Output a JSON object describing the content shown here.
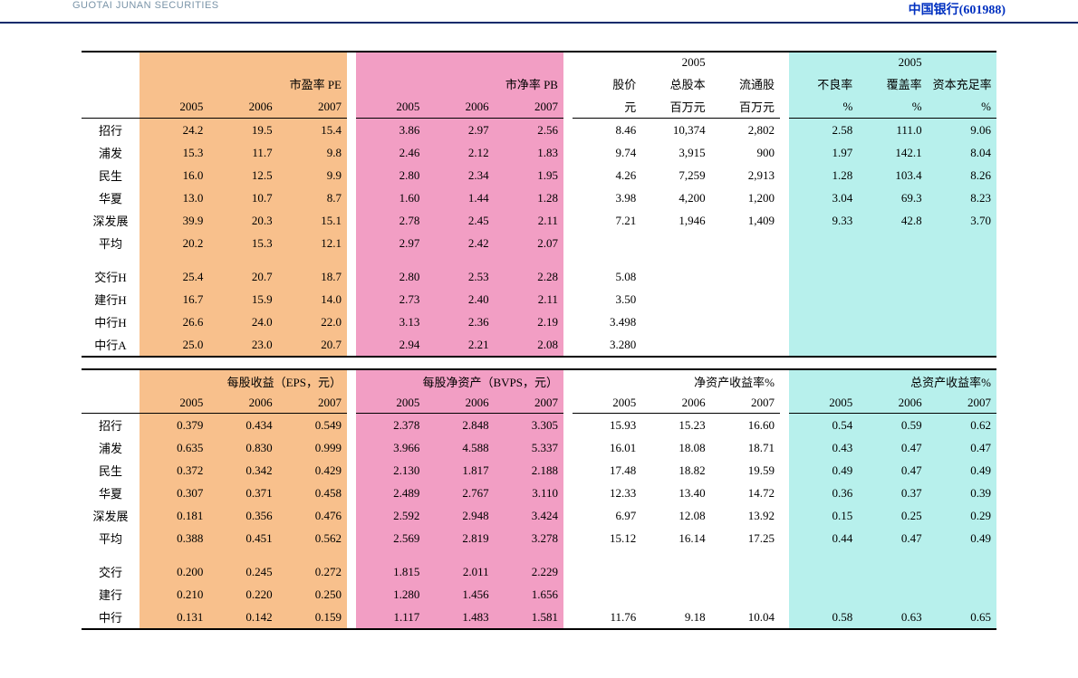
{
  "header": {
    "brand": "GUOTAI JUNAN SECURITIES",
    "ticker": "中国银行(601988)"
  },
  "colors": {
    "orange": "#f8c08c",
    "pink": "#f29ec4",
    "cyan": "#b7f0ec",
    "white": "#ffffff",
    "rule": "#000000",
    "topbar_rule": "#0a2a6b"
  },
  "table1": {
    "groups": {
      "pe": {
        "label": "市盈率 PE",
        "years": [
          "2005",
          "2006",
          "2007"
        ]
      },
      "pb": {
        "label": "市净率 PB",
        "years": [
          "2005",
          "2006",
          "2007"
        ]
      },
      "price": {
        "label": "股价",
        "unit": "元"
      },
      "tot_shares": {
        "sup_year": "2005",
        "label": "总股本",
        "unit": "百万元"
      },
      "float_shares": {
        "label": "流通股",
        "unit": "百万元"
      },
      "npl": {
        "sup_year": "2005",
        "label": "不良率",
        "unit": "%"
      },
      "coverage": {
        "label": "覆盖率",
        "unit": "%"
      },
      "car": {
        "label": "资本充足率",
        "unit": "%"
      }
    },
    "rows": [
      {
        "name": "招行",
        "pe": [
          "24.2",
          "19.5",
          "15.4"
        ],
        "pb": [
          "3.86",
          "2.97",
          "2.56"
        ],
        "price": "8.46",
        "tot": "10,374",
        "float": "2,802",
        "npl": "2.58",
        "cov": "111.0",
        "car": "9.06"
      },
      {
        "name": "浦发",
        "pe": [
          "15.3",
          "11.7",
          "9.8"
        ],
        "pb": [
          "2.46",
          "2.12",
          "1.83"
        ],
        "price": "9.74",
        "tot": "3,915",
        "float": "900",
        "npl": "1.97",
        "cov": "142.1",
        "car": "8.04"
      },
      {
        "name": "民生",
        "pe": [
          "16.0",
          "12.5",
          "9.9"
        ],
        "pb": [
          "2.80",
          "2.34",
          "1.95"
        ],
        "price": "4.26",
        "tot": "7,259",
        "float": "2,913",
        "npl": "1.28",
        "cov": "103.4",
        "car": "8.26"
      },
      {
        "name": "华夏",
        "pe": [
          "13.0",
          "10.7",
          "8.7"
        ],
        "pb": [
          "1.60",
          "1.44",
          "1.28"
        ],
        "price": "3.98",
        "tot": "4,200",
        "float": "1,200",
        "npl": "3.04",
        "cov": "69.3",
        "car": "8.23"
      },
      {
        "name": "深发展",
        "pe": [
          "39.9",
          "20.3",
          "15.1"
        ],
        "pb": [
          "2.78",
          "2.45",
          "2.11"
        ],
        "price": "7.21",
        "tot": "1,946",
        "float": "1,409",
        "npl": "9.33",
        "cov": "42.8",
        "car": "3.70"
      },
      {
        "name": "平均",
        "pe": [
          "20.2",
          "15.3",
          "12.1"
        ],
        "pb": [
          "2.97",
          "2.42",
          "2.07"
        ],
        "price": "",
        "tot": "",
        "float": "",
        "npl": "",
        "cov": "",
        "car": ""
      }
    ],
    "rows2": [
      {
        "name": "交行H",
        "pe": [
          "25.4",
          "20.7",
          "18.7"
        ],
        "pb": [
          "2.80",
          "2.53",
          "2.28"
        ],
        "price": "5.08"
      },
      {
        "name": "建行H",
        "pe": [
          "16.7",
          "15.9",
          "14.0"
        ],
        "pb": [
          "2.73",
          "2.40",
          "2.11"
        ],
        "price": "3.50"
      },
      {
        "name": "中行H",
        "pe": [
          "26.6",
          "24.0",
          "22.0"
        ],
        "pb": [
          "3.13",
          "2.36",
          "2.19"
        ],
        "price": "3.498"
      },
      {
        "name": "中行A",
        "pe": [
          "25.0",
          "23.0",
          "20.7"
        ],
        "pb": [
          "2.94",
          "2.21",
          "2.08"
        ],
        "price": "3.280"
      }
    ]
  },
  "table2": {
    "groups": {
      "eps": {
        "label": "每股收益（EPS，元）",
        "years": [
          "2005",
          "2006",
          "2007"
        ]
      },
      "bvps": {
        "label": "每股净资产（BVPS，元）",
        "years": [
          "2005",
          "2006",
          "2007"
        ]
      },
      "roe": {
        "label": "净资产收益率%",
        "years": [
          "2005",
          "2006",
          "2007"
        ]
      },
      "roa": {
        "label": "总资产收益率%",
        "years": [
          "2005",
          "2006",
          "2007"
        ]
      }
    },
    "rows": [
      {
        "name": "招行",
        "eps": [
          "0.379",
          "0.434",
          "0.549"
        ],
        "bvps": [
          "2.378",
          "2.848",
          "3.305"
        ],
        "roe": [
          "15.93",
          "15.23",
          "16.60"
        ],
        "roa": [
          "0.54",
          "0.59",
          "0.62"
        ]
      },
      {
        "name": "浦发",
        "eps": [
          "0.635",
          "0.830",
          "0.999"
        ],
        "bvps": [
          "3.966",
          "4.588",
          "5.337"
        ],
        "roe": [
          "16.01",
          "18.08",
          "18.71"
        ],
        "roa": [
          "0.43",
          "0.47",
          "0.47"
        ]
      },
      {
        "name": "民生",
        "eps": [
          "0.372",
          "0.342",
          "0.429"
        ],
        "bvps": [
          "2.130",
          "1.817",
          "2.188"
        ],
        "roe": [
          "17.48",
          "18.82",
          "19.59"
        ],
        "roa": [
          "0.49",
          "0.47",
          "0.49"
        ]
      },
      {
        "name": "华夏",
        "eps": [
          "0.307",
          "0.371",
          "0.458"
        ],
        "bvps": [
          "2.489",
          "2.767",
          "3.110"
        ],
        "roe": [
          "12.33",
          "13.40",
          "14.72"
        ],
        "roa": [
          "0.36",
          "0.37",
          "0.39"
        ]
      },
      {
        "name": "深发展",
        "eps": [
          "0.181",
          "0.356",
          "0.476"
        ],
        "bvps": [
          "2.592",
          "2.948",
          "3.424"
        ],
        "roe": [
          "6.97",
          "12.08",
          "13.92"
        ],
        "roa": [
          "0.15",
          "0.25",
          "0.29"
        ]
      },
      {
        "name": "平均",
        "eps": [
          "0.388",
          "0.451",
          "0.562"
        ],
        "bvps": [
          "2.569",
          "2.819",
          "3.278"
        ],
        "roe": [
          "15.12",
          "16.14",
          "17.25"
        ],
        "roa": [
          "0.44",
          "0.47",
          "0.49"
        ]
      }
    ],
    "rows2": [
      {
        "name": "交行",
        "eps": [
          "0.200",
          "0.245",
          "0.272"
        ],
        "bvps": [
          "1.815",
          "2.011",
          "2.229"
        ],
        "roe": [
          "",
          "",
          ""
        ],
        "roa": [
          "",
          "",
          ""
        ]
      },
      {
        "name": "建行",
        "eps": [
          "0.210",
          "0.220",
          "0.250"
        ],
        "bvps": [
          "1.280",
          "1.456",
          "1.656"
        ],
        "roe": [
          "",
          "",
          ""
        ],
        "roa": [
          "",
          "",
          ""
        ]
      },
      {
        "name": "中行",
        "eps": [
          "0.131",
          "0.142",
          "0.159"
        ],
        "bvps": [
          "1.117",
          "1.483",
          "1.581"
        ],
        "roe": [
          "11.76",
          "9.18",
          "10.04"
        ],
        "roa": [
          "0.58",
          "0.63",
          "0.65"
        ]
      }
    ]
  }
}
